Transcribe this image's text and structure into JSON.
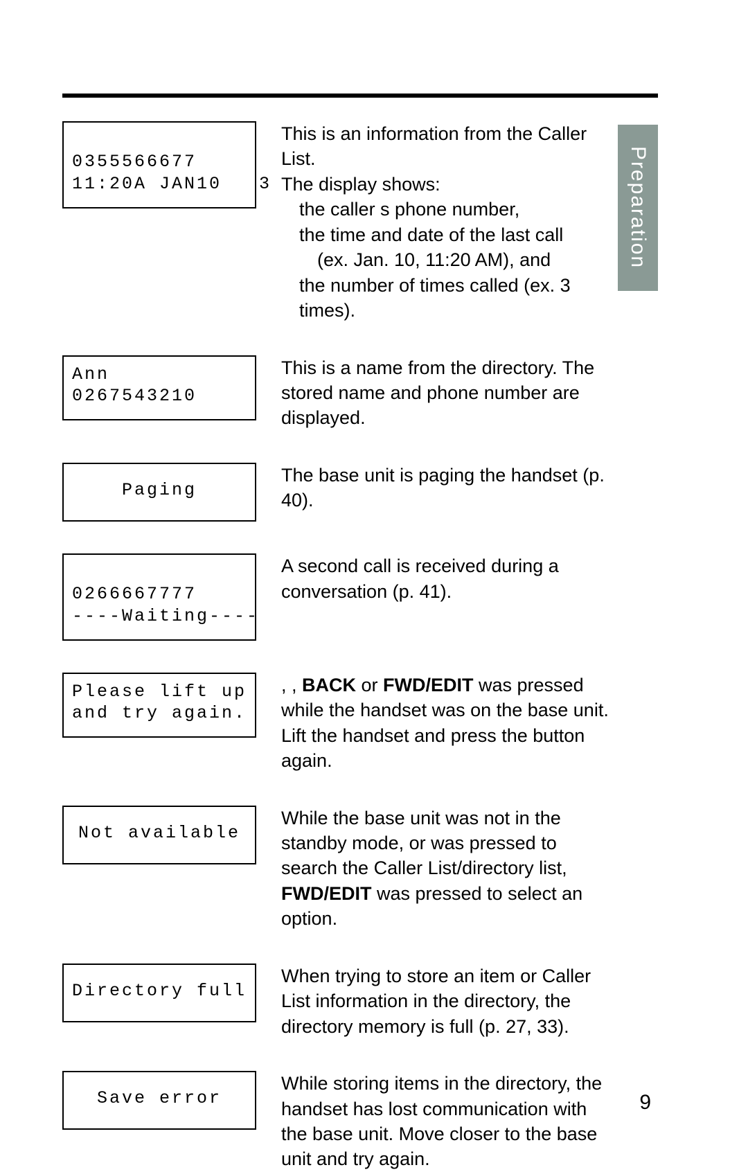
{
  "side_tab": "Preparation",
  "page_number": "9",
  "rows": [
    {
      "display": {
        "lines": [
          "",
          "0355566677",
          "11:20A JAN10   3"
        ],
        "align": "left",
        "pad_top": false
      },
      "desc": {
        "parts": [
          {
            "text": "This is an information from the Caller List.",
            "indent": 0
          },
          {
            "text": "The display shows:",
            "indent": 0
          },
          {
            "text": "the caller s phone number,",
            "indent": 1
          },
          {
            "text": "the time and date of the last call",
            "indent": 1
          },
          {
            "text": "(ex. Jan. 10, 11:20 AM), and",
            "indent": 2
          },
          {
            "text": "the number of times called (ex. 3 times).",
            "indent": 1
          }
        ]
      }
    },
    {
      "display": {
        "lines": [
          "Ann",
          "0267543210",
          ""
        ],
        "align": "left",
        "pad_top": false
      },
      "desc": {
        "parts": [
          {
            "text": "This is a name from the directory. The stored name and phone number are displayed.",
            "indent": 0
          }
        ]
      }
    },
    {
      "display": {
        "lines": [
          "Paging"
        ],
        "align": "center",
        "pad_top": true
      },
      "desc": {
        "parts": [
          {
            "text": "The base unit is paging the handset (p. 40).",
            "indent": 0
          }
        ]
      }
    },
    {
      "display": {
        "lines": [
          "",
          "0266667777",
          "----Waiting----"
        ],
        "align": "left",
        "pad_top": false
      },
      "desc": {
        "parts": [
          {
            "text": "A second call is received during a conversation (p. 41).",
            "indent": 0
          }
        ]
      }
    },
    {
      "display": {
        "lines": [
          "Please lift up",
          "and try again."
        ],
        "align": "left",
        "pad_top": false
      },
      "desc": {
        "segments": [
          {
            "text": "    ,     ,    ",
            "bold": false
          },
          {
            "text": "BACK",
            "bold": true
          },
          {
            "text": "      or ",
            "bold": false
          },
          {
            "text": "FWD/EDIT",
            "bold": true
          },
          {
            "text": "      was pressed while the handset was on the base unit. Lift the handset and press the button again.",
            "bold": false
          }
        ]
      }
    },
    {
      "display": {
        "lines": [
          "Not available"
        ],
        "align": "center",
        "pad_top": true
      },
      "desc": {
        "segments": [
          {
            "text": "While the base unit was not in the standby mode,       or       was pressed to search the Caller List/directory list, ",
            "bold": false
          },
          {
            "text": "FWD/EDIT",
            "bold": true
          },
          {
            "text": "      was pressed to select an option.",
            "bold": false
          }
        ]
      }
    },
    {
      "display": {
        "lines": [
          "Directory full"
        ],
        "align": "left",
        "pad_top": true
      },
      "desc": {
        "parts": [
          {
            "text": "When trying to store an item or Caller List information in the directory, the directory memory is full (p. 27, 33).",
            "indent": 0
          }
        ]
      }
    },
    {
      "display": {
        "lines": [
          "Save error"
        ],
        "align": "center",
        "pad_top": true
      },
      "desc": {
        "parts": [
          {
            "text": "While storing items in the directory, the handset has lost communication with the base unit. Move closer to the base unit and try again.",
            "indent": 0
          }
        ]
      }
    }
  ]
}
